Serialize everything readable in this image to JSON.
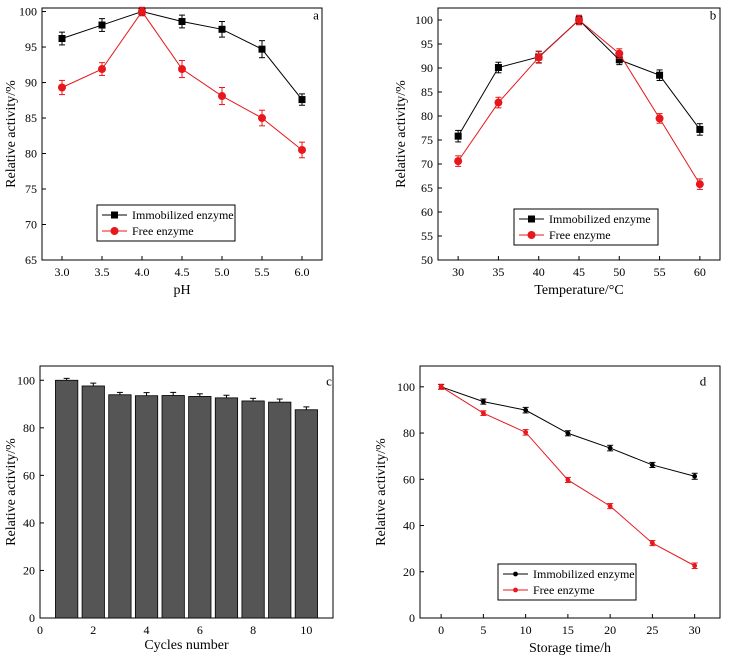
{
  "chart_data": [
    {
      "type": "line",
      "panel_label": "a",
      "xlabel": "pH",
      "ylabel": "Relative activity/%",
      "x": [
        3.0,
        3.5,
        4.0,
        4.5,
        5.0,
        5.5,
        6.0
      ],
      "x_tick_labels": [
        "3.0",
        "3.5",
        "4.0",
        "4.5",
        "5.0",
        "5.5",
        "6.0"
      ],
      "xlim": [
        2.75,
        6.25
      ],
      "ylim": [
        65,
        100.5
      ],
      "y_ticks": [
        65,
        70,
        75,
        80,
        85,
        90,
        95,
        100
      ],
      "legend": "center-left",
      "series": [
        {
          "name": "Immobilized enzyme",
          "color": "#000000",
          "marker": "square",
          "values": [
            96.2,
            98.1,
            100.0,
            98.6,
            97.5,
            94.7,
            87.6
          ],
          "errors": [
            0.9,
            0.9,
            0.5,
            0.9,
            1.1,
            1.2,
            0.8
          ]
        },
        {
          "name": "Free enzyme",
          "color": "#e8171b",
          "marker": "circle",
          "values": [
            89.3,
            91.9,
            100.0,
            91.9,
            88.1,
            85.0,
            80.5
          ],
          "errors": [
            1.0,
            0.9,
            0.6,
            1.2,
            1.2,
            1.1,
            1.1
          ]
        }
      ]
    },
    {
      "type": "line",
      "panel_label": "b",
      "xlabel": "Temperature/°C",
      "ylabel": "Relative activity/%",
      "x": [
        30,
        35,
        40,
        45,
        50,
        55,
        60
      ],
      "x_tick_labels": [
        "30",
        "35",
        "40",
        "45",
        "50",
        "55",
        "60"
      ],
      "xlim": [
        27.5,
        62.5
      ],
      "ylim": [
        50,
        102.5
      ],
      "y_ticks": [
        50,
        55,
        60,
        65,
        70,
        75,
        80,
        85,
        90,
        95,
        100
      ],
      "legend": "center-right",
      "series": [
        {
          "name": "Immobilized enzyme",
          "color": "#000000",
          "marker": "square",
          "values": [
            75.8,
            90.1,
            92.3,
            100.0,
            91.7,
            88.5,
            77.2
          ],
          "errors": [
            1.2,
            1.1,
            1.2,
            0.8,
            1.0,
            1.1,
            1.2
          ]
        },
        {
          "name": "Free enzyme",
          "color": "#e8171b",
          "marker": "circle",
          "values": [
            70.6,
            82.8,
            92.2,
            100.0,
            93.0,
            79.5,
            65.8
          ],
          "errors": [
            1.1,
            1.1,
            1.2,
            1.0,
            1.0,
            1.0,
            1.1
          ]
        }
      ]
    },
    {
      "type": "bar",
      "panel_label": "c",
      "xlabel": "Cycles number",
      "ylabel": "Relative activity/%",
      "categories": [
        1,
        2,
        3,
        4,
        5,
        6,
        7,
        8,
        9,
        10
      ],
      "values": [
        100.0,
        97.6,
        93.9,
        93.5,
        93.6,
        93.2,
        92.6,
        91.3,
        90.8,
        87.6
      ],
      "errors": [
        0.8,
        1.2,
        1.0,
        1.3,
        1.3,
        1.1,
        1.1,
        1.1,
        1.3,
        1.2
      ],
      "xlim": [
        0,
        11
      ],
      "x_ticks": [
        0,
        2,
        4,
        6,
        8,
        10
      ],
      "ylim": [
        0,
        106
      ],
      "y_ticks": [
        0,
        20,
        40,
        60,
        80,
        100
      ],
      "bar_color": "#555555"
    },
    {
      "type": "line",
      "panel_label": "d",
      "xlabel": "Storage time/h",
      "ylabel": "Relative activity/%",
      "x": [
        0,
        5,
        10,
        15,
        20,
        25,
        30
      ],
      "x_tick_labels": [
        "0",
        "5",
        "10",
        "15",
        "20",
        "25",
        "30"
      ],
      "xlim": [
        -2.5,
        33
      ],
      "ylim": [
        0,
        109
      ],
      "y_ticks": [
        0,
        20,
        40,
        60,
        80,
        100
      ],
      "legend": "bottom-left",
      "series": [
        {
          "name": "Immobilized enzyme",
          "color": "#000000",
          "marker": "dot",
          "values": [
            100.0,
            93.6,
            89.9,
            79.9,
            73.5,
            66.2,
            61.3
          ],
          "errors": [
            1.0,
            1.1,
            1.2,
            1.1,
            1.2,
            1.1,
            1.3
          ]
        },
        {
          "name": "Free enzyme",
          "color": "#e8171b",
          "marker": "dot",
          "values": [
            100.0,
            88.6,
            80.3,
            59.7,
            48.4,
            32.4,
            22.6
          ],
          "errors": [
            1.1,
            1.0,
            1.2,
            1.1,
            1.1,
            1.1,
            1.2
          ]
        }
      ]
    }
  ]
}
